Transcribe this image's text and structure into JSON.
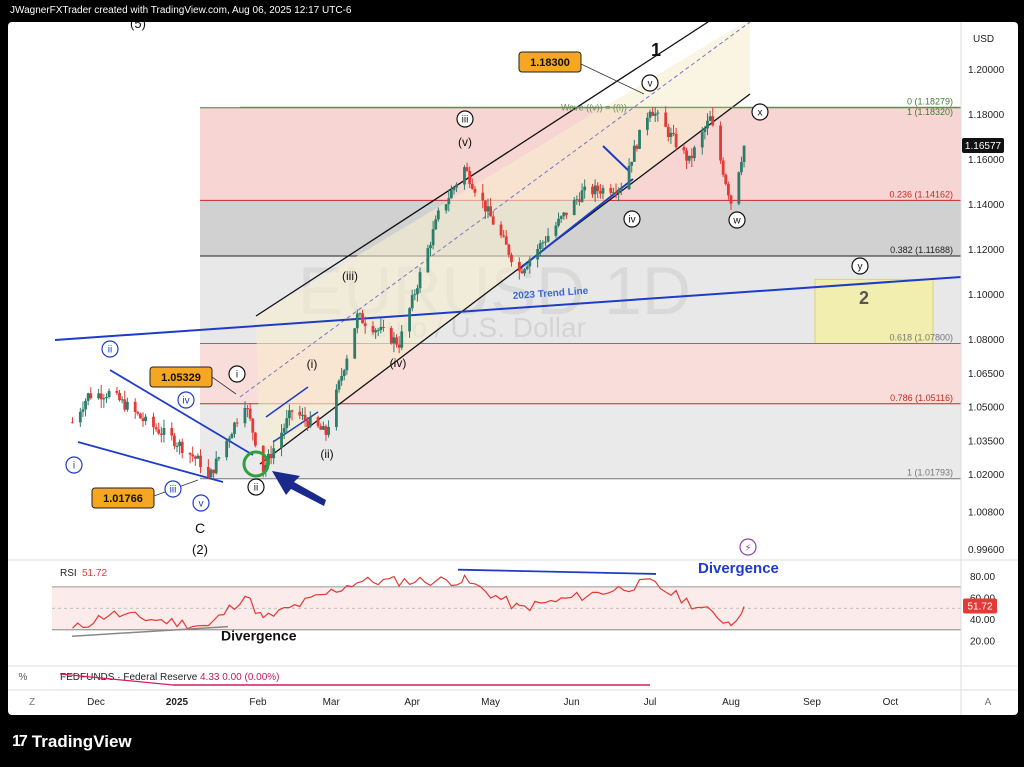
{
  "header": {
    "attribution": "JWagnerFXTrader created with TradingView.com, Aug 06, 2025 12:17 UTC-6"
  },
  "footer": {
    "brand": "TradingView"
  },
  "colors": {
    "up": "#2e7d6b",
    "down": "#e53935",
    "channel": "#111111",
    "trend": "#1e3cc8",
    "label_box": "#f5a623",
    "fib_line": "#c62828",
    "fib_gray": "#555555",
    "rsi": "#e53935"
  },
  "watermark": {
    "symbol": "EURUSD 1D",
    "name": "Euro / U.S. Dollar"
  },
  "price_axis": {
    "currency": "USD",
    "ticks": [
      "1.20000",
      "1.18000",
      "1.16000",
      "1.14000",
      "1.12000",
      "1.10000",
      "1.08000",
      "1.06500",
      "1.05000",
      "1.03500",
      "1.02000",
      "1.00800",
      "0.99600"
    ],
    "last_price": "1.16577"
  },
  "time_axis": {
    "ticks": [
      "Dec",
      "2025",
      "Feb",
      "Mar",
      "Apr",
      "May",
      "Jun",
      "Jul",
      "Aug",
      "Sep",
      "Oct"
    ]
  },
  "fib_levels": [
    {
      "ratio": "0 (1.18279)"
    },
    {
      "ratio": "1 (1.18320)"
    },
    {
      "ratio": "0.236 (1.14162)"
    },
    {
      "ratio": "0.382 (1.11688)"
    },
    {
      "ratio": "0.618 (1.07800)"
    },
    {
      "ratio": "0.786 (1.05116)"
    },
    {
      "ratio": "1 (1.01793)"
    }
  ],
  "labels": {
    "wave_eq": "Wave ((v)) = ((i))",
    "trend_line": "2023 Trend Line",
    "box_top": "1.18300",
    "box_mid": "1.05329",
    "box_low": "1.01766",
    "wave1": "1",
    "wave2": "2",
    "waveC": "C",
    "wave_2paren": "(2)",
    "wave_5paren": "(5)",
    "w_iii_paren": "(iii)",
    "w_v_paren": "(v)",
    "w_i_paren": "(i)",
    "w_ii_paren": "(ii)",
    "w_iv_paren": "(iv)",
    "c_iii": "iii",
    "c_v": "v",
    "c_i": "i",
    "c_ii": "ii",
    "c_iv": "iv",
    "c_w": "w",
    "c_x": "x",
    "c_y": "y",
    "b_ii": "ii",
    "b_i": "i",
    "b_iv": "iv",
    "b_iii": "iii",
    "b_v": "v",
    "divergence_top": "Divergence",
    "divergence_bottom": "Divergence"
  },
  "rsi": {
    "label": "RSI",
    "value": "51.72",
    "ticks": [
      "80.00",
      "60.00",
      "40.00",
      "20.00"
    ]
  },
  "fedfunds": {
    "label": "FEDFUNDS · Federal Reserve",
    "values": "4.33  0.00 (0.00%)"
  },
  "scale_buttons": {
    "percent": "%",
    "log": "Z",
    "auto": "A"
  },
  "chart_data": {
    "type": "candlestick",
    "title": "EURUSD 1D",
    "xlabel": "",
    "ylabel": "USD",
    "ylim": [
      0.99,
      1.205
    ],
    "close_path": [
      {
        "date": "2024-11-22",
        "close": 1.043
      },
      {
        "date": "2024-11-28",
        "close": 1.055
      },
      {
        "date": "2024-12-06",
        "close": 1.056
      },
      {
        "date": "2024-12-13",
        "close": 1.05
      },
      {
        "date": "2024-12-20",
        "close": 1.043
      },
      {
        "date": "2024-12-31",
        "close": 1.035
      },
      {
        "date": "2025-01-10",
        "close": 1.025
      },
      {
        "date": "2025-01-13",
        "close": 1.0177
      },
      {
        "date": "2025-01-27",
        "close": 1.052
      },
      {
        "date": "2025-02-03",
        "close": 1.022
      },
      {
        "date": "2025-02-14",
        "close": 1.048
      },
      {
        "date": "2025-02-27",
        "close": 1.038
      },
      {
        "date": "2025-03-11",
        "close": 1.09
      },
      {
        "date": "2025-03-27",
        "close": 1.078
      },
      {
        "date": "2025-04-11",
        "close": 1.135
      },
      {
        "date": "2025-04-21",
        "close": 1.156
      },
      {
        "date": "2025-05-12",
        "close": 1.11
      },
      {
        "date": "2025-06-05",
        "close": 1.145
      },
      {
        "date": "2025-06-20",
        "close": 1.148
      },
      {
        "date": "2025-07-01",
        "close": 1.183
      },
      {
        "date": "2025-07-16",
        "close": 1.159
      },
      {
        "date": "2025-07-24",
        "close": 1.178
      },
      {
        "date": "2025-08-01",
        "close": 1.141
      },
      {
        "date": "2025-08-06",
        "close": 1.1658
      }
    ],
    "rsi_path": [
      {
        "date": "2024-11-22",
        "rsi": 30
      },
      {
        "date": "2024-12-06",
        "rsi": 45
      },
      {
        "date": "2025-01-13",
        "rsi": 33
      },
      {
        "date": "2025-01-27",
        "rsi": 62
      },
      {
        "date": "2025-02-03",
        "rsi": 40
      },
      {
        "date": "2025-03-11",
        "rsi": 75
      },
      {
        "date": "2025-04-21",
        "rsi": 76
      },
      {
        "date": "2025-05-12",
        "rsi": 50
      },
      {
        "date": "2025-07-01",
        "rsi": 74
      },
      {
        "date": "2025-08-01",
        "rsi": 36
      },
      {
        "date": "2025-08-06",
        "rsi": 51.72
      }
    ]
  }
}
